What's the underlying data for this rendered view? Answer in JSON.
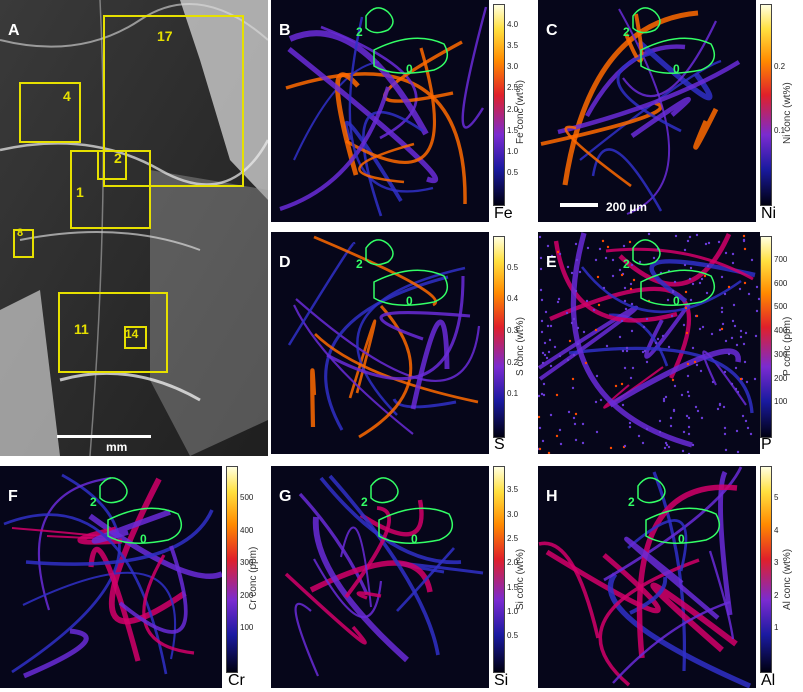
{
  "panel_a": {
    "letter": "A",
    "boxes": [
      "17",
      "4",
      "2",
      "1",
      "8",
      "11",
      "14"
    ],
    "scale_label": "mm"
  },
  "maps": [
    {
      "id": "B",
      "element": "Fe",
      "cbar_label": "Fe conc (wt%)",
      "ticks": [
        "4.0",
        "3.5",
        "3.0",
        "2.5",
        "2.0",
        "1.5",
        "1.0",
        "0.5"
      ],
      "cmap": "hot"
    },
    {
      "id": "C",
      "element": "Ni",
      "cbar_label": "Ni conc (wt%)",
      "ticks": [
        "0.2",
        "0.1"
      ],
      "cmap": "hot",
      "scale_label": "200 µm"
    },
    {
      "id": "D",
      "element": "S",
      "cbar_label": "S conc (wt%)",
      "ticks": [
        "0.5",
        "0.4",
        "0.3",
        "0.2",
        "0.1"
      ],
      "cmap": "hot"
    },
    {
      "id": "E",
      "element": "P",
      "cbar_label": "P conc (ppm)",
      "ticks": [
        "700",
        "600",
        "500",
        "400",
        "300",
        "200",
        "100"
      ],
      "cmap": "hot"
    },
    {
      "id": "F",
      "element": "Cr",
      "cbar_label": "Cr conc (ppm)",
      "ticks": [
        "500",
        "400",
        "300",
        "200",
        "100"
      ],
      "cmap": "hot"
    },
    {
      "id": "G",
      "element": "Si",
      "cbar_label": "Si conc (wt%)",
      "ticks": [
        "3.5",
        "3.0",
        "2.5",
        "2.0",
        "1.5",
        "1.0",
        "0.5"
      ],
      "cmap": "hot"
    },
    {
      "id": "H",
      "element": "Al",
      "cbar_label": "Al conc (wt%)",
      "ticks": [
        "5",
        "4",
        "3",
        "2",
        "1"
      ],
      "cmap": "hot"
    }
  ],
  "roi_labels": [
    "2",
    "0"
  ],
  "colors": {
    "roi": "#33ff66",
    "box": "#e6e000",
    "bg_map": "#06061a"
  }
}
